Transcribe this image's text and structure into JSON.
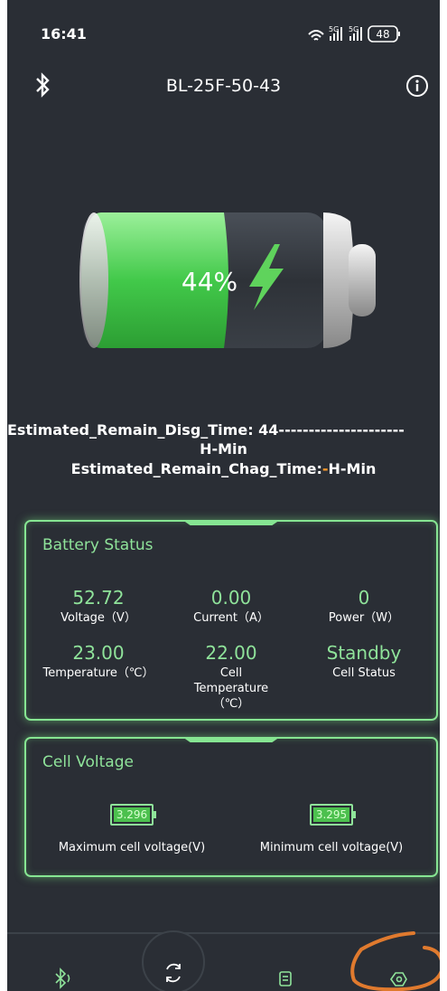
{
  "status_bar": {
    "time": "16:41",
    "network": [
      "5G",
      "5G"
    ],
    "battery": "48"
  },
  "header": {
    "title": "BL-25F-50-43"
  },
  "battery": {
    "level": "44%"
  },
  "estimates": {
    "discharge_label": "Estimated_Remain_Disg_Time: 44---------------------",
    "discharge_unit": "H-Min",
    "charge_label": "Estimated_Remain_Chag_Time:",
    "charge_value": "-",
    "charge_unit": "H-Min"
  },
  "battery_status": {
    "title": "Battery Status",
    "items": [
      {
        "value": "52.72",
        "label": "Voltage（V）"
      },
      {
        "value": "0.00",
        "label": "Current（A）"
      },
      {
        "value": "0",
        "label": "Power（W）"
      },
      {
        "value": "23.00",
        "label": "Temperature（℃）"
      },
      {
        "value": "22.00",
        "label": "Cell Temperature（℃）"
      },
      {
        "value": "Standby",
        "label": "Cell Status"
      }
    ]
  },
  "cell_voltage": {
    "title": "Cell Voltage",
    "items": [
      {
        "value": "3.296",
        "label": "Maximum cell voltage(V)"
      },
      {
        "value": "3.295",
        "label": "Minimum cell voltage(V)"
      }
    ]
  }
}
